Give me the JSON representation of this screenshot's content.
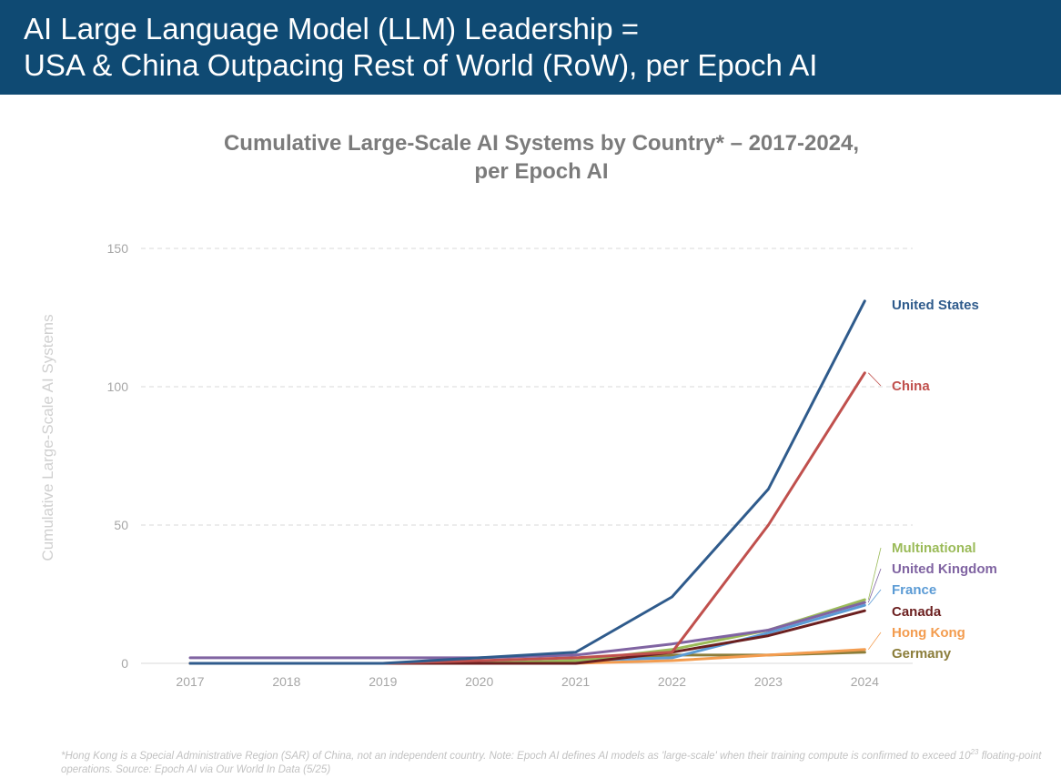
{
  "header": {
    "line1": "AI Large Language Model (LLM) Leadership =",
    "line2": "USA & China Outpacing Rest of World (RoW), per Epoch AI"
  },
  "footnote": {
    "part1": "*Hong Kong is a Special Administrative Region (SAR) of China, not an independent country. Note: Epoch AI defines AI models as 'large-scale' when their training compute is confirmed to exceed 10",
    "exponent": "23",
    "part2": " floating-point operations. Source: Epoch AI via Our World In Data (5/25)"
  },
  "colors": {
    "header_bg": "#0f4a73",
    "grid": "#d9d9d9",
    "axis_text": "#a6a6a6"
  },
  "chart_data": {
    "type": "line",
    "title_line1": "Cumulative Large-Scale AI Systems by Country* – 2017-2024,",
    "title_line2": "per Epoch AI",
    "xlabel": "",
    "ylabel": "Cumulative Large-Scale AI Systems",
    "x": [
      "2017",
      "2018",
      "2019",
      "2020",
      "2021",
      "2022",
      "2023",
      "2024"
    ],
    "yticks": [
      0,
      50,
      100,
      150
    ],
    "ylim": [
      0,
      150
    ],
    "grid": true,
    "legend_placement": "right (direct labels at line ends)",
    "series": [
      {
        "name": "Germany",
        "color": "#8b7d3a",
        "values": [
          0,
          0,
          0,
          0,
          1,
          3,
          3,
          4
        ]
      },
      {
        "name": "Hong Kong",
        "color": "#f39c4f",
        "values": [
          0,
          0,
          0,
          0,
          0,
          1,
          3,
          5
        ]
      },
      {
        "name": "France",
        "color": "#5b9bd5",
        "values": [
          0,
          0,
          0,
          0,
          1,
          2,
          11,
          21
        ]
      },
      {
        "name": "Multinational",
        "color": "#9bbb59",
        "values": [
          0,
          0,
          0,
          0,
          1,
          5,
          12,
          23
        ]
      },
      {
        "name": "United Kingdom",
        "color": "#8064a2",
        "values": [
          2,
          2,
          2,
          2,
          3,
          7,
          12,
          22
        ]
      },
      {
        "name": "Canada",
        "color": "#6b1f1f",
        "values": [
          0,
          0,
          0,
          0,
          0,
          4,
          10,
          19
        ]
      },
      {
        "name": "China",
        "color": "#c0504d",
        "values": [
          0,
          0,
          0,
          1,
          2,
          4,
          50,
          105
        ]
      },
      {
        "name": "United States",
        "color": "#2f5b8c",
        "values": [
          0,
          0,
          0,
          2,
          4,
          24,
          63,
          131
        ]
      }
    ]
  }
}
